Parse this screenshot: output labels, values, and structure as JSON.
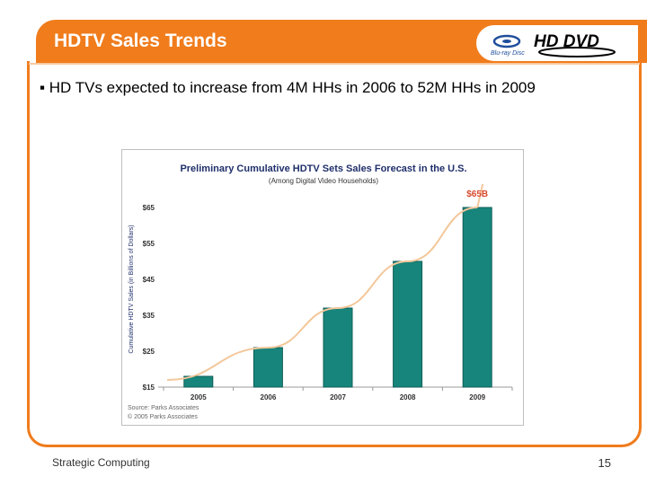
{
  "slide": {
    "title": "HDTV Sales Trends",
    "bullet": "▪ HD TVs expected to increase from 4M HHs in 2006 to 52M HHs in 2009",
    "footer_left": "Strategic Computing",
    "page_number": "15",
    "logos": {
      "bluray_text": "Blu-ray Disc",
      "hddvd_text": "HD DVD"
    }
  },
  "colors": {
    "accent": "#f07c1c",
    "bar": "#17857b",
    "title_blue": "#1f2f6b",
    "highlight": "#d9492e"
  },
  "chart_data": {
    "type": "bar",
    "title": "Preliminary Cumulative HDTV Sets Sales Forecast in the U.S.",
    "subtitle": "(Among Digital Video Households)",
    "ylabel": "Cumulative HDTV Sales (in Billions of Dollars)",
    "xlabel": "",
    "categories": [
      "2005",
      "2006",
      "2007",
      "2008",
      "2009"
    ],
    "values": [
      18,
      26,
      37,
      50,
      65
    ],
    "ylim": [
      15,
      65
    ],
    "yticks": [
      15,
      25,
      35,
      45,
      55,
      65
    ],
    "ytick_labels": [
      "$15",
      "$25",
      "$35",
      "$45",
      "$55",
      "$65"
    ],
    "annotation": "$65B",
    "trendline": "curved",
    "source_lines": [
      "Source: Parks Associates",
      "© 2005 Parks Associates"
    ],
    "grid": false
  }
}
